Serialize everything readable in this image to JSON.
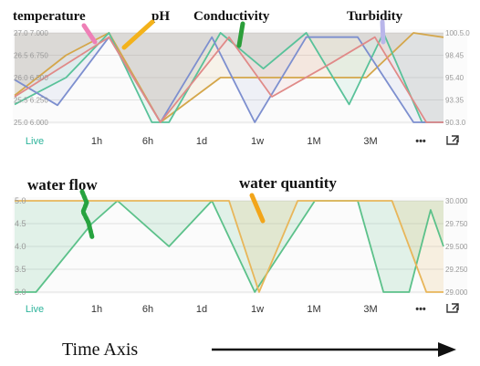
{
  "colors": {
    "temperature": "#d4a64a",
    "pH": "#59c29a",
    "conductivity": "#7d8fcf",
    "turbidity": "#e08a88",
    "water_flow": "#5cc18a",
    "water_quantity": "#e8b65a",
    "live": "#2bb39a",
    "marker_temperature": "#ee7fb6",
    "marker_ph": "#f3b21b",
    "marker_conductivity": "#2c9e3a",
    "marker_turbidity": "#b9b6ea",
    "marker_water_flow": "#27a33f",
    "marker_water_quantity": "#f2a51a"
  },
  "time_buttons": [
    "Live",
    "1h",
    "6h",
    "1d",
    "1w",
    "1M",
    "3M"
  ],
  "more_glyph": "•••",
  "expand_icon": "expand-icon",
  "bottom_label": "Time Axis",
  "chart_data": [
    {
      "type": "line",
      "title": "",
      "legend": "top",
      "grid": true,
      "series": [
        {
          "name": "temperature",
          "y_points": [
            [
              0,
              25.6
            ],
            [
              0.12,
              26.5
            ],
            [
              0.22,
              27.0
            ],
            [
              0.34,
              25.0
            ],
            [
              0.48,
              26.0
            ],
            [
              0.82,
              26.0
            ],
            [
              0.93,
              27.0
            ],
            [
              1.0,
              26.9
            ]
          ]
        },
        {
          "name": "pH",
          "y_points": [
            [
              0,
              6.2
            ],
            [
              0.12,
              6.5
            ],
            [
              0.22,
              7.0
            ],
            [
              0.32,
              6.0
            ],
            [
              0.36,
              6.0
            ],
            [
              0.48,
              7.0
            ],
            [
              0.58,
              6.6
            ],
            [
              0.68,
              7.0
            ],
            [
              0.78,
              6.2
            ],
            [
              0.86,
              7.0
            ],
            [
              0.95,
              6.0
            ],
            [
              1.0,
              6.0
            ]
          ]
        },
        {
          "name": "Conductivity",
          "y_points": [
            [
              0,
              95.0
            ],
            [
              0.1,
              92.0
            ],
            [
              0.22,
              100.0
            ],
            [
              0.34,
              90.0
            ],
            [
              0.46,
              100.0
            ],
            [
              0.56,
              90.0
            ],
            [
              0.68,
              100.0
            ],
            [
              0.8,
              100.0
            ],
            [
              0.93,
              90.0
            ],
            [
              1.0,
              90.0
            ]
          ]
        },
        {
          "name": "Turbidity",
          "y_points": [
            [
              0,
              93.0
            ],
            [
              0.22,
              100.0
            ],
            [
              0.34,
              90.0
            ],
            [
              0.5,
              100.0
            ],
            [
              0.6,
              93.0
            ],
            [
              0.74,
              97.0
            ],
            [
              0.84,
              100.0
            ],
            [
              0.96,
              90.0
            ],
            [
              1.0,
              90.0
            ]
          ]
        }
      ],
      "yaxis_left": {
        "temperature_range": [
          25.0,
          27.0
        ],
        "pH_range": [
          6.0,
          7.0
        ],
        "ticks": [
          {
            "temperature": "27.0",
            "pH": "7.000"
          },
          {
            "temperature": "26.5",
            "pH": "6.750"
          },
          {
            "temperature": "26.0",
            "pH": "6.500"
          },
          {
            "temperature": "25.5",
            "pH": "6.250"
          },
          {
            "temperature": "25.0",
            "pH": "6.000"
          }
        ]
      },
      "yaxis_right": {
        "range": [
          90.0,
          100.5
        ],
        "ticks": [
          "100.5.0",
          "98.45",
          "95.40",
          "93.35",
          "90.3.0"
        ]
      },
      "xaxis": {
        "labels": [
          "Live",
          "1h",
          "6h",
          "1d",
          "1w",
          "1M",
          "3M"
        ]
      }
    },
    {
      "type": "line",
      "title": "",
      "legend": "top",
      "grid": true,
      "series": [
        {
          "name": "water flow",
          "y_points": [
            [
              0,
              3.0
            ],
            [
              0.05,
              3.0
            ],
            [
              0.18,
              4.5
            ],
            [
              0.24,
              5.0
            ],
            [
              0.36,
              4.0
            ],
            [
              0.46,
              5.0
            ],
            [
              0.56,
              3.0
            ],
            [
              0.7,
              5.0
            ],
            [
              0.8,
              5.0
            ],
            [
              0.86,
              3.0
            ],
            [
              0.92,
              3.0
            ],
            [
              0.97,
              4.8
            ],
            [
              1.0,
              4.0
            ]
          ]
        },
        {
          "name": "water quantity",
          "y_points": [
            [
              0,
              30000
            ],
            [
              0.5,
              30000
            ],
            [
              0.57,
              29000
            ],
            [
              0.66,
              30000
            ],
            [
              0.88,
              30000
            ],
            [
              0.96,
              29000
            ],
            [
              1.0,
              29000
            ]
          ]
        }
      ],
      "yaxis_left": {
        "range": [
          3.0,
          5.0
        ],
        "ticks": [
          "5.0",
          "4.5",
          "4.0",
          "3.5",
          "3.0"
        ]
      },
      "yaxis_right": {
        "range": [
          29000,
          30000
        ],
        "ticks": [
          "30.000",
          "29.750",
          "29.500",
          "29.250",
          "29.000"
        ]
      },
      "xaxis": {
        "labels": [
          "Live",
          "1h",
          "6h",
          "1d",
          "1w",
          "1M",
          "3M"
        ]
      }
    }
  ]
}
